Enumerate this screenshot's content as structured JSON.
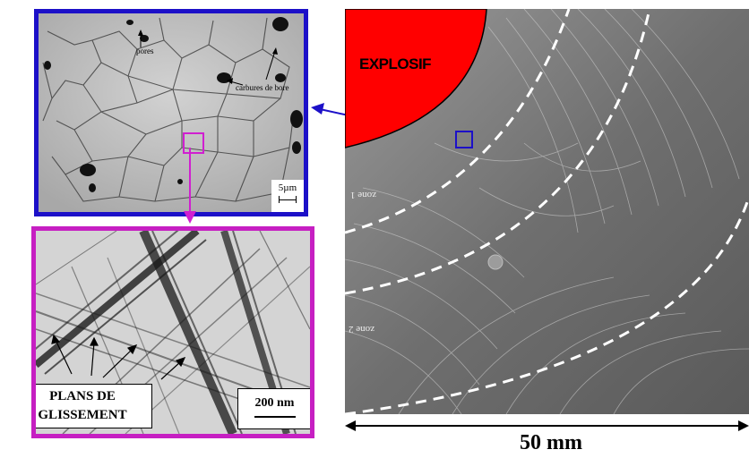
{
  "sem_image": {
    "label_pores": "pores",
    "label_carbides": "carbures de bore",
    "scale_label": "5µm"
  },
  "tem_image": {
    "callout_line1": "PLANS DE",
    "callout_line2": "GLISSEMENT",
    "scale_label": "200 nm"
  },
  "macro_image": {
    "explosive_label": "EXPLOSIF",
    "zone1_label": "zone 1",
    "zone2_label": "zone 2",
    "scale_label": "50 mm"
  },
  "colors": {
    "sem_border": "#1c10c8",
    "tem_border": "#c61fc2",
    "explosive_fill": "#ff0000"
  }
}
